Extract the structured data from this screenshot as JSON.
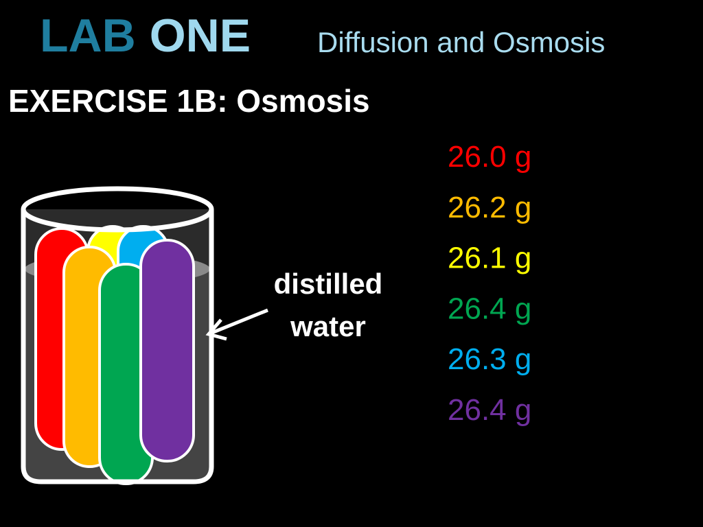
{
  "header": {
    "title_part1": "LAB",
    "title_part2": "ONE",
    "subtitle": "Diffusion and Osmosis"
  },
  "exercise": "EXERCISE 1B: Osmosis",
  "label": [
    "distilled",
    "water"
  ],
  "masses": [
    {
      "text": "26.0 g",
      "color": "#ff0000"
    },
    {
      "text": "26.2 g",
      "color": "#ffbb00"
    },
    {
      "text": "26.1 g",
      "color": "#ffff00"
    },
    {
      "text": "26.4 g",
      "color": "#00a651"
    },
    {
      "text": "26.3 g",
      "color": "#00aeef"
    },
    {
      "text": "26.4 g",
      "color": "#7030a0"
    }
  ]
}
